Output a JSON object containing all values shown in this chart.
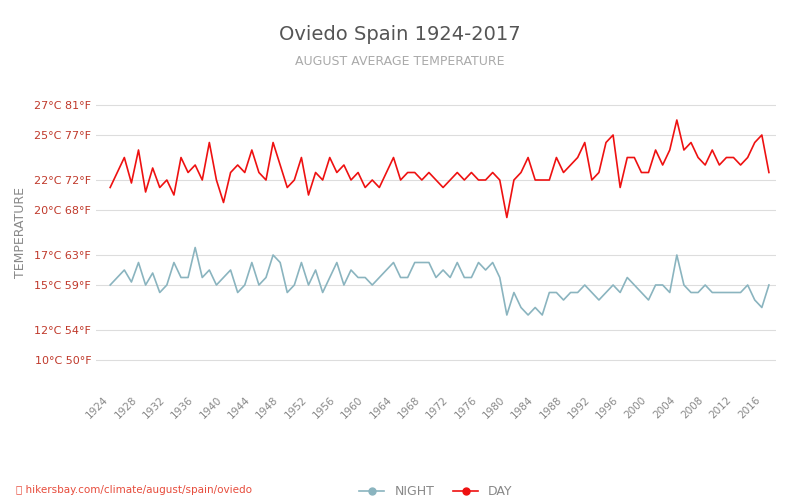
{
  "title": "Oviedo Spain 1924-2017",
  "subtitle": "AUGUST AVERAGE TEMPERATURE",
  "ylabel": "TEMPERATURE",
  "xlabel_url": "hikersbay.com/climate/august/spain/oviedo",
  "title_color": "#555555",
  "subtitle_color": "#aaaaaa",
  "ylabel_color": "#888888",
  "background_color": "#ffffff",
  "grid_color": "#dddddd",
  "day_color": "#ee1111",
  "night_color": "#8ab4bf",
  "yticks_celsius": [
    10,
    12,
    15,
    17,
    20,
    22,
    25,
    27
  ],
  "yticks_fahrenheit": [
    50,
    54,
    59,
    63,
    68,
    72,
    77,
    81
  ],
  "ylim": [
    8,
    29
  ],
  "years": [
    1924,
    1925,
    1926,
    1927,
    1928,
    1929,
    1930,
    1931,
    1932,
    1933,
    1934,
    1935,
    1936,
    1937,
    1938,
    1939,
    1940,
    1941,
    1942,
    1943,
    1944,
    1945,
    1946,
    1947,
    1948,
    1949,
    1950,
    1951,
    1952,
    1953,
    1954,
    1955,
    1956,
    1957,
    1958,
    1959,
    1960,
    1961,
    1962,
    1963,
    1964,
    1965,
    1966,
    1967,
    1968,
    1969,
    1970,
    1971,
    1972,
    1973,
    1974,
    1975,
    1976,
    1977,
    1978,
    1979,
    1980,
    1981,
    1982,
    1983,
    1984,
    1985,
    1986,
    1987,
    1988,
    1989,
    1990,
    1991,
    1992,
    1993,
    1994,
    1995,
    1996,
    1997,
    1998,
    1999,
    2000,
    2001,
    2002,
    2003,
    2004,
    2005,
    2006,
    2007,
    2008,
    2009,
    2010,
    2011,
    2012,
    2013,
    2014,
    2015,
    2016,
    2017
  ],
  "day_temps": [
    21.5,
    22.5,
    23.5,
    21.8,
    24.0,
    21.2,
    22.8,
    21.5,
    22.0,
    21.0,
    23.5,
    22.5,
    23.0,
    22.0,
    24.5,
    22.0,
    20.5,
    22.5,
    23.0,
    22.5,
    24.0,
    22.5,
    22.0,
    24.5,
    23.0,
    21.5,
    22.0,
    23.5,
    21.0,
    22.5,
    22.0,
    23.5,
    22.5,
    23.0,
    22.0,
    22.5,
    21.5,
    22.0,
    21.5,
    22.5,
    23.5,
    22.0,
    22.5,
    22.5,
    22.0,
    22.5,
    22.0,
    21.5,
    22.0,
    22.5,
    22.0,
    22.5,
    22.0,
    22.0,
    22.5,
    22.0,
    19.5,
    22.0,
    22.5,
    23.5,
    22.0,
    22.0,
    22.0,
    23.5,
    22.5,
    23.0,
    23.5,
    24.5,
    22.0,
    22.5,
    24.5,
    25.0,
    21.5,
    23.5,
    23.5,
    22.5,
    22.5,
    24.0,
    23.0,
    24.0,
    26.0,
    24.0,
    24.5,
    23.5,
    23.0,
    24.0,
    23.0,
    23.5,
    23.5,
    23.0,
    23.5,
    24.5,
    25.0,
    22.5
  ],
  "night_temps": [
    15.0,
    15.5,
    16.0,
    15.2,
    16.5,
    15.0,
    15.8,
    14.5,
    15.0,
    16.5,
    15.5,
    15.5,
    17.5,
    15.5,
    16.0,
    15.0,
    15.5,
    16.0,
    14.5,
    15.0,
    16.5,
    15.0,
    15.5,
    17.0,
    16.5,
    14.5,
    15.0,
    16.5,
    15.0,
    16.0,
    14.5,
    15.5,
    16.5,
    15.0,
    16.0,
    15.5,
    15.5,
    15.0,
    15.5,
    16.0,
    16.5,
    15.5,
    15.5,
    16.5,
    16.5,
    16.5,
    15.5,
    16.0,
    15.5,
    16.5,
    15.5,
    15.5,
    16.5,
    16.0,
    16.5,
    15.5,
    13.0,
    14.5,
    13.5,
    13.0,
    13.5,
    13.0,
    14.5,
    14.5,
    14.0,
    14.5,
    14.5,
    15.0,
    14.5,
    14.0,
    14.5,
    15.0,
    14.5,
    15.5,
    15.0,
    14.5,
    14.0,
    15.0,
    15.0,
    14.5,
    17.0,
    15.0,
    14.5,
    14.5,
    15.0,
    14.5,
    14.5,
    14.5,
    14.5,
    14.5,
    15.0,
    14.0,
    13.5,
    15.0
  ]
}
